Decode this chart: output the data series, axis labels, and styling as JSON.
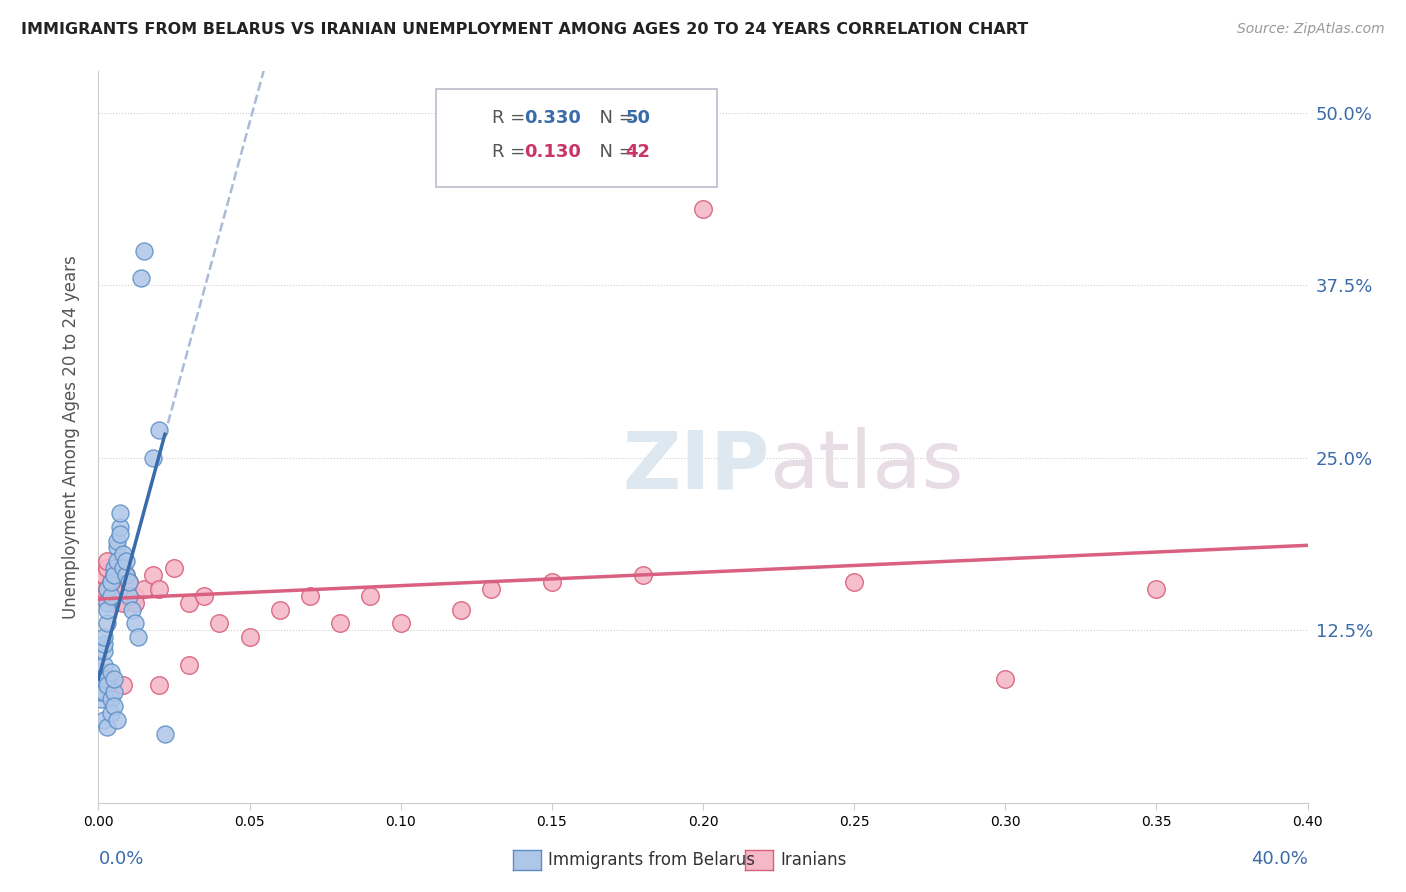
{
  "title": "IMMIGRANTS FROM BELARUS VS IRANIAN UNEMPLOYMENT AMONG AGES 20 TO 24 YEARS CORRELATION CHART",
  "source": "Source: ZipAtlas.com",
  "ylabel": "Unemployment Among Ages 20 to 24 years",
  "yticks_labels": [
    "12.5%",
    "25.0%",
    "37.5%",
    "50.0%"
  ],
  "ytick_vals": [
    0.125,
    0.25,
    0.375,
    0.5
  ],
  "xlim": [
    0.0,
    0.4
  ],
  "ylim": [
    0.0,
    0.53
  ],
  "watermark_zip": "ZIP",
  "watermark_atlas": "atlas",
  "legend1_label": "R = 0.330   N = 50",
  "legend2_label": "R = 0.130   N = 42",
  "legend_R1": "0.330",
  "legend_N1": "50",
  "legend_R2": "0.130",
  "legend_N2": "42",
  "color_belarus": "#aec6e8",
  "color_belarus_edge": "#5b8ec4",
  "color_iranians": "#f5b8c8",
  "color_iranians_edge": "#d9607a",
  "color_trendline_blue_solid": "#3a6baa",
  "color_trendline_blue_dashed": "#aabbd8",
  "color_trendline_pink": "#d96080",
  "bel_x": [
    0.001,
    0.001,
    0.001,
    0.001,
    0.001,
    0.002,
    0.002,
    0.002,
    0.002,
    0.002,
    0.002,
    0.003,
    0.003,
    0.003,
    0.003,
    0.003,
    0.003,
    0.004,
    0.004,
    0.004,
    0.004,
    0.005,
    0.005,
    0.005,
    0.005,
    0.006,
    0.006,
    0.006,
    0.007,
    0.007,
    0.007,
    0.008,
    0.008,
    0.009,
    0.009,
    0.01,
    0.01,
    0.011,
    0.012,
    0.013,
    0.014,
    0.015,
    0.018,
    0.02,
    0.022,
    0.002,
    0.003,
    0.004,
    0.005,
    0.006
  ],
  "bel_y": [
    0.09,
    0.085,
    0.095,
    0.075,
    0.08,
    0.1,
    0.11,
    0.115,
    0.08,
    0.09,
    0.12,
    0.13,
    0.145,
    0.155,
    0.09,
    0.085,
    0.14,
    0.15,
    0.16,
    0.095,
    0.075,
    0.17,
    0.165,
    0.08,
    0.09,
    0.185,
    0.175,
    0.19,
    0.2,
    0.195,
    0.21,
    0.18,
    0.17,
    0.165,
    0.175,
    0.15,
    0.16,
    0.14,
    0.13,
    0.12,
    0.38,
    0.4,
    0.25,
    0.27,
    0.05,
    0.06,
    0.055,
    0.065,
    0.07,
    0.06
  ],
  "ira_x": [
    0.001,
    0.001,
    0.002,
    0.002,
    0.003,
    0.003,
    0.004,
    0.005,
    0.005,
    0.006,
    0.007,
    0.008,
    0.009,
    0.01,
    0.012,
    0.015,
    0.018,
    0.02,
    0.025,
    0.03,
    0.035,
    0.04,
    0.05,
    0.06,
    0.07,
    0.08,
    0.09,
    0.1,
    0.12,
    0.13,
    0.15,
    0.18,
    0.2,
    0.25,
    0.3,
    0.35,
    0.003,
    0.004,
    0.008,
    0.012,
    0.02,
    0.03
  ],
  "ira_y": [
    0.15,
    0.16,
    0.155,
    0.165,
    0.17,
    0.175,
    0.155,
    0.145,
    0.165,
    0.15,
    0.155,
    0.145,
    0.165,
    0.16,
    0.15,
    0.155,
    0.165,
    0.155,
    0.17,
    0.145,
    0.15,
    0.13,
    0.12,
    0.14,
    0.15,
    0.13,
    0.15,
    0.13,
    0.14,
    0.155,
    0.16,
    0.165,
    0.43,
    0.16,
    0.09,
    0.155,
    0.155,
    0.16,
    0.085,
    0.145,
    0.085,
    0.1
  ]
}
